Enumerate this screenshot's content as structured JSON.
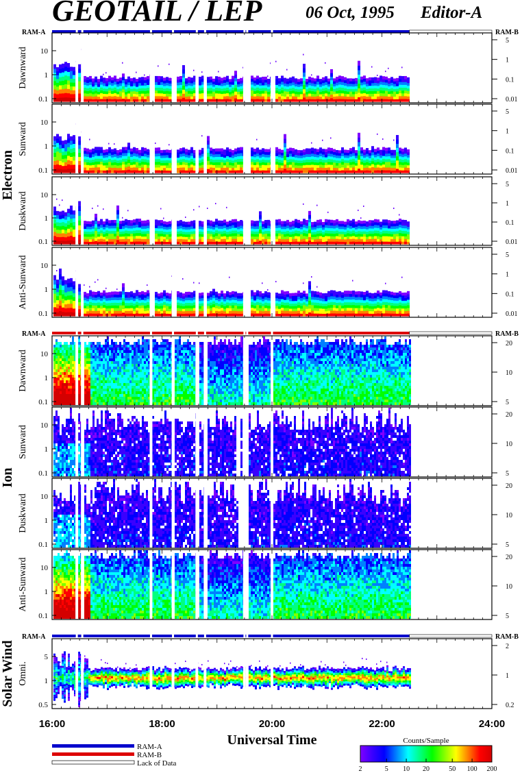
{
  "header": {
    "title": "GEOTAIL / LEP",
    "date": "06 Oct, 1995",
    "editor": "Editor-A"
  },
  "chart_data": {
    "type": "heatmap",
    "xlabel": "Universal Time",
    "x_ticks": [
      "16:00",
      "18:00",
      "20:00",
      "22:00",
      "24:00"
    ],
    "x_range": [
      "16:00",
      "24:00"
    ],
    "data_end": "22:30",
    "groups": [
      {
        "name": "Electron",
        "mode_bar_labels": [
          "RAM-A",
          "RAM-B"
        ],
        "mode_bar_color": "#0000cc",
        "panels": [
          {
            "ylabel": "Dawnward",
            "left_ticks": [
              "10",
              "1",
              "0.1"
            ],
            "right_ticks": [
              "5",
              "1",
              "0.1",
              "0.01"
            ]
          },
          {
            "ylabel": "Sunward",
            "left_ticks": [
              "10",
              "1",
              "0.1"
            ],
            "right_ticks": [
              "5",
              "1",
              "0.1",
              "0.01"
            ]
          },
          {
            "ylabel": "Duskward",
            "left_ticks": [
              "10",
              "1",
              "0.1"
            ],
            "right_ticks": [
              "5",
              "1",
              "0.1",
              "0.01"
            ]
          },
          {
            "ylabel": "Anti-Sunward",
            "left_ticks": [
              "10",
              "1",
              "0.1"
            ],
            "right_ticks": [
              "5",
              "1",
              "0.1",
              "0.01"
            ]
          }
        ]
      },
      {
        "name": "Ion",
        "mode_bar_labels": [
          "RAM-A",
          "RAM-B"
        ],
        "mode_bar_color": "#dd0000",
        "panels": [
          {
            "ylabel": "Dawnward",
            "left_ticks": [
              "10",
              "1",
              "0.1"
            ],
            "right_ticks": [
              "20",
              "10",
              "5"
            ]
          },
          {
            "ylabel": "Sunward",
            "left_ticks": [
              "10",
              "1",
              "0.1"
            ],
            "right_ticks": [
              "20",
              "10",
              "5"
            ]
          },
          {
            "ylabel": "Duskward",
            "left_ticks": [
              "10",
              "1",
              "0.1"
            ],
            "right_ticks": [
              "20",
              "10",
              "5"
            ]
          },
          {
            "ylabel": "Anti-Sunward",
            "left_ticks": [
              "10",
              "1",
              "0.1"
            ],
            "right_ticks": [
              "20",
              "10",
              "5"
            ]
          }
        ]
      },
      {
        "name": "Solar Wind",
        "mode_bar_labels": [
          "RAM-A",
          "RAM-B"
        ],
        "mode_bar_color": "#0000cc",
        "panels": [
          {
            "ylabel": "Omni.",
            "left_ticks": [
              "5",
              "1",
              "0.5"
            ],
            "right_ticks": [
              "2",
              "1",
              "0.2"
            ]
          }
        ]
      }
    ],
    "legend": [
      {
        "label": "RAM-A",
        "color": "#0000cc"
      },
      {
        "label": "RAM-B",
        "color": "#dd0000"
      },
      {
        "label": "Lack of Data",
        "color": "#ffffff"
      }
    ],
    "colorbar": {
      "title": "Counts/Sample",
      "ticks": [
        "2",
        "5",
        "10",
        "20",
        "50",
        "100",
        "200"
      ],
      "colors": [
        "#8000ff",
        "#3a00ff",
        "#0000ff",
        "#0080ff",
        "#00ffff",
        "#00ff80",
        "#00ff00",
        "#80ff00",
        "#ffff00",
        "#ff8000",
        "#ff0000",
        "#d40000"
      ]
    }
  }
}
